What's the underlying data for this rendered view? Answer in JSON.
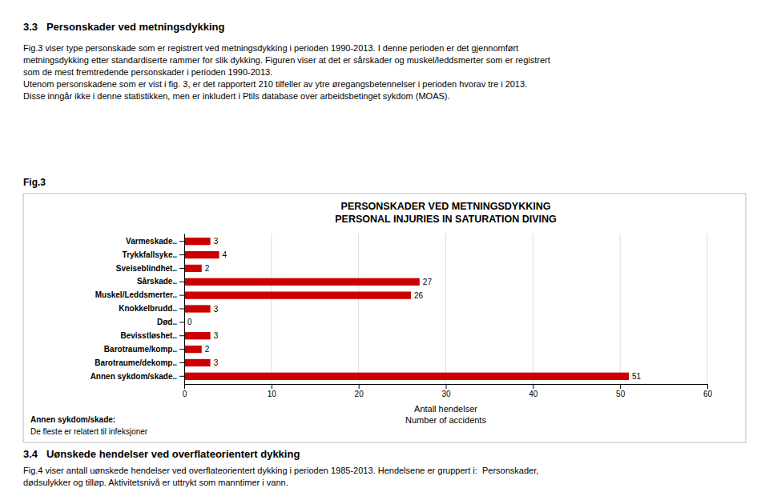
{
  "section_heading": "3.3   Personskader ved metningsdykking",
  "para1": [
    "Fig.3 viser type personskade som er registrert ved metningsdykking i perioden 1990-2013. I denne perioden er det gjennomført",
    "metningsdykking etter standardiserte rammer for slik dykking. Figuren viser at det er sårskader og muskel/leddsmerter som er registrert",
    "som de mest fremtredende personskader i perioden 1990-2013.",
    "Utenom personskadene som er vist i fig. 3, er det rapportert 210 tilfeller av ytre øregangsbetennelser i perioden hvorav tre i 2013.",
    "Disse inngår ikke i denne statistikken, men er inkludert i Ptils database over arbeidsbetinget sykdom (MOAS)."
  ],
  "fig_label": "Fig.3",
  "section2_heading": "3.4   Uønskede hendelser ved overflateorientert dykking",
  "para2": [
    "Fig.4 viser antall uønskede hendelser ved overflateorientert dykking i perioden 1985-2013. Hendelsene er gruppert i:  Personskader,",
    "dødsulykker og tilløp. Aktivitetsnivå er uttrykt som manntimer i vann."
  ],
  "chart_data": {
    "type": "bar",
    "orientation": "horizontal",
    "title": "PERSONSKADER VED METNINGSDYKKING",
    "subtitle": "PERSONAL INJURIES IN SATURATION DIVING",
    "categories": [
      "Varmeskade..",
      "Trykkfallsyke..",
      "Sveiseblindhet..",
      "Sårskade..",
      "Muskel/Leddsmerter..",
      "Knokkelbrudd..",
      "Død..",
      "Bevisstløshet..",
      "Barotraume/komp..",
      "Barotraume/dekomp..",
      "Annen sykdom/skade.."
    ],
    "values": [
      3,
      4,
      2,
      27,
      26,
      3,
      0,
      3,
      2,
      3,
      51
    ],
    "color": "#cc0000",
    "xlabel": [
      "Antall hendelser",
      "Number of accidents"
    ],
    "xlim": [
      0,
      60
    ],
    "xticks": [
      0,
      10,
      20,
      30,
      40,
      50,
      60
    ],
    "grid": true,
    "data_labels": true,
    "annotations": [
      "Annen sykdom/skade:",
      "De fleste er relatert til infeksjoner"
    ]
  }
}
